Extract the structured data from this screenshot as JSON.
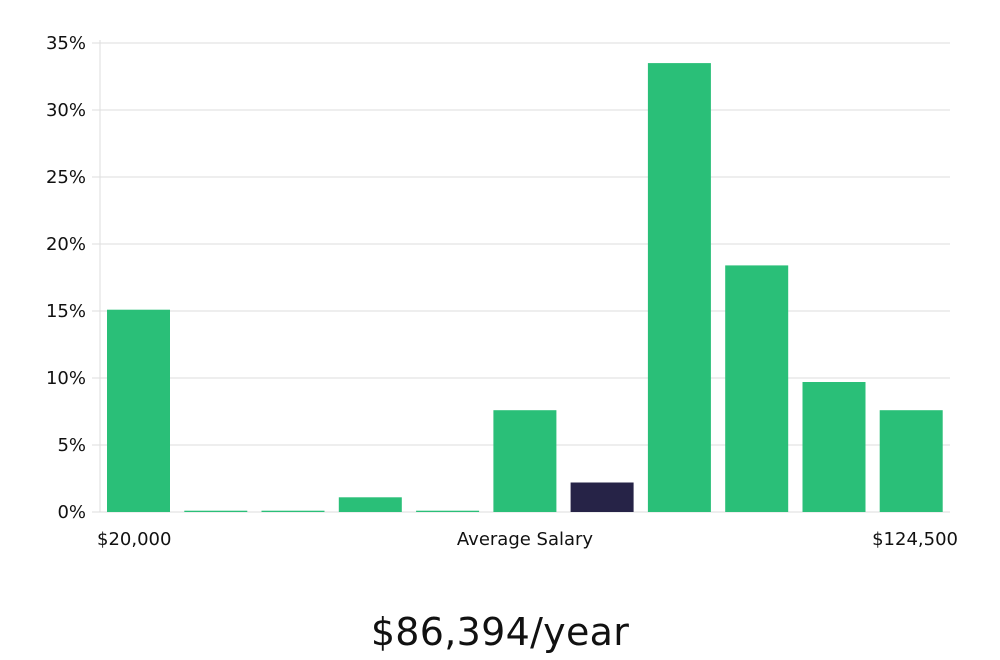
{
  "colors": {
    "bar": "#2abf78",
    "highlight": "#262347",
    "grid": "#dedede",
    "text": "#111111"
  },
  "chart_data": {
    "type": "bar",
    "categories": [
      "1",
      "2",
      "3",
      "4",
      "5",
      "6",
      "7",
      "8",
      "9",
      "10",
      "11"
    ],
    "values": [
      15.1,
      0.1,
      0.1,
      1.1,
      0.1,
      7.6,
      2.2,
      33.5,
      18.4,
      9.7,
      7.6
    ],
    "highlight_index": 6,
    "ylim": [
      0,
      35
    ],
    "yticks": [
      "0%",
      "5%",
      "10%",
      "15%",
      "20%",
      "25%",
      "30%",
      "35%"
    ],
    "ytick_values": [
      0,
      5,
      10,
      15,
      20,
      25,
      30,
      35
    ],
    "x_min_label": "$20,000",
    "x_center_label": "Average Salary",
    "x_max_label": "$124,500",
    "grid": true
  },
  "summary": {
    "salary": "$86,394/year"
  }
}
